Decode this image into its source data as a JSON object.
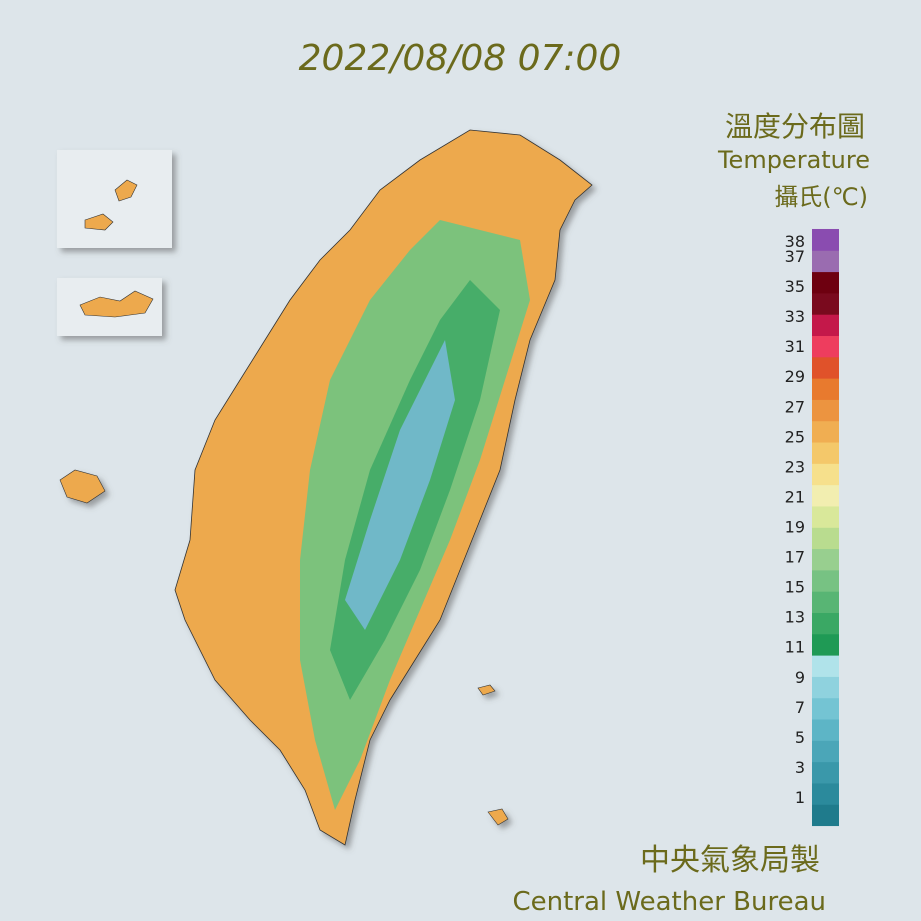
{
  "header": {
    "timestamp": "2022/08/08 07:00"
  },
  "legend": {
    "title_zh": "溫度分布圖",
    "title_en": "Temperature",
    "unit": "攝氏(℃)",
    "ticks": [
      1,
      3,
      5,
      7,
      9,
      11,
      13,
      15,
      17,
      19,
      21,
      23,
      25,
      27,
      29,
      31,
      33,
      35,
      37,
      38
    ],
    "colors": [
      "#1f7b8c",
      "#2b8a9c",
      "#3a98aa",
      "#4ba6b8",
      "#5db5c6",
      "#74c4d3",
      "#8fd2de",
      "#b0e3ea",
      "#1f9a55",
      "#3aa864",
      "#58b574",
      "#77c283",
      "#98cf8f",
      "#b9dc8f",
      "#d9e89a",
      "#f2eeb0",
      "#f6e08c",
      "#f4c86a",
      "#f0ae52",
      "#ec9440",
      "#e87a2e",
      "#e0522a",
      "#ee3d5e",
      "#c4184a",
      "#7a0a1e",
      "#6e0010",
      "#9a6cb0",
      "#8a4cb0"
    ]
  },
  "footer": {
    "agency_zh": "中央氣象局製",
    "agency_en": "Central Weather Bureau"
  }
}
